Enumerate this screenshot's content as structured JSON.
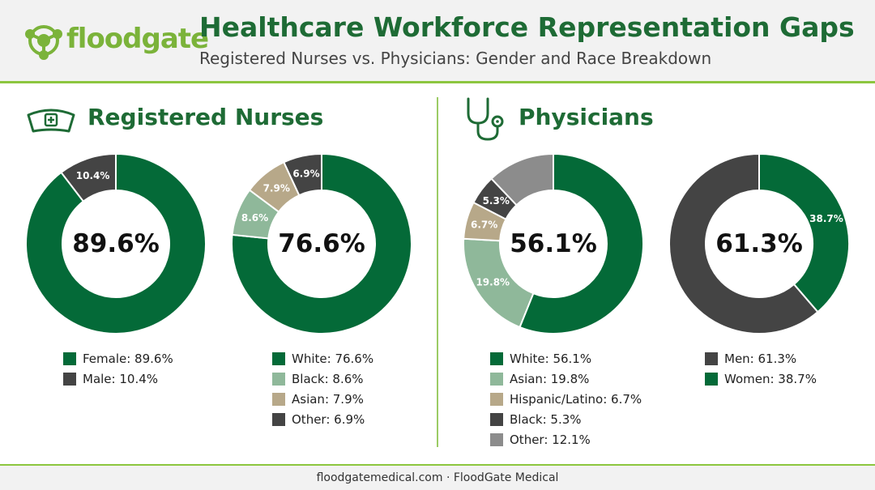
{
  "brand": {
    "name": "floodgate",
    "color": "#7bb33a"
  },
  "header": {
    "title": "Healthcare Workforce Representation Gaps",
    "subtitle": "Registered Nurses vs. Physicians: Gender and Race Breakdown"
  },
  "sections": {
    "nurses": {
      "title": "Registered Nurses",
      "icon": "nurse-cap-icon"
    },
    "physicians": {
      "title": "Physicians",
      "icon": "stethoscope-icon"
    }
  },
  "chart_data": [
    {
      "type": "pie",
      "group": "Registered Nurses",
      "center_label": "89.6%",
      "slices": [
        {
          "label": "Female",
          "value": 89.6,
          "color": "#046a38",
          "text": "",
          "legend": "Female: 89.6%"
        },
        {
          "label": "Male",
          "value": 10.4,
          "color": "#444444",
          "text": "10.4%",
          "legend": "Male: 10.4%"
        }
      ]
    },
    {
      "type": "pie",
      "group": "Registered Nurses",
      "center_label": "76.6%",
      "slices": [
        {
          "label": "White",
          "value": 76.6,
          "color": "#046a38",
          "text": "",
          "legend": "White: 76.6%"
        },
        {
          "label": "Black",
          "value": 8.6,
          "color": "#8fb89a",
          "text": "8.6%",
          "legend": "Black: 8.6%"
        },
        {
          "label": "Asian",
          "value": 7.9,
          "color": "#b7a889",
          "text": "7.9%",
          "legend": "Asian: 7.9%"
        },
        {
          "label": "Other",
          "value": 6.9,
          "color": "#444444",
          "text": "6.9%",
          "legend": "Other: 6.9%"
        }
      ]
    },
    {
      "type": "pie",
      "group": "Physicians",
      "center_label": "56.1%",
      "slices": [
        {
          "label": "White",
          "value": 56.1,
          "color": "#046a38",
          "text": "",
          "legend": "White: 56.1%"
        },
        {
          "label": "Asian",
          "value": 19.8,
          "color": "#8fb89a",
          "text": "19.8%",
          "legend": "Asian: 19.8%"
        },
        {
          "label": "Hispanic/Latino",
          "value": 6.7,
          "color": "#b7a889",
          "text": "6.7%",
          "legend": "Hispanic/Latino: 6.7%"
        },
        {
          "label": "Black",
          "value": 5.3,
          "color": "#444444",
          "text": "5.3%",
          "legend": "Black: 5.3%"
        },
        {
          "label": "Other",
          "value": 12.1,
          "color": "#8c8c8c",
          "text": "",
          "legend": "Other: 12.1%"
        }
      ]
    },
    {
      "type": "pie",
      "group": "Physicians",
      "center_label": "61.3%",
      "slices": [
        {
          "label": "Women",
          "value": 38.7,
          "color": "#046a38",
          "text": "38.7%",
          "legend": "Women: 38.7%"
        },
        {
          "label": "Men",
          "value": 61.3,
          "color": "#444444",
          "text": "",
          "legend": "Men: 61.3%"
        }
      ],
      "legend_order": [
        1,
        0
      ]
    }
  ],
  "footer": {
    "text": "floodgatemedical.com · FloodGate Medical"
  }
}
